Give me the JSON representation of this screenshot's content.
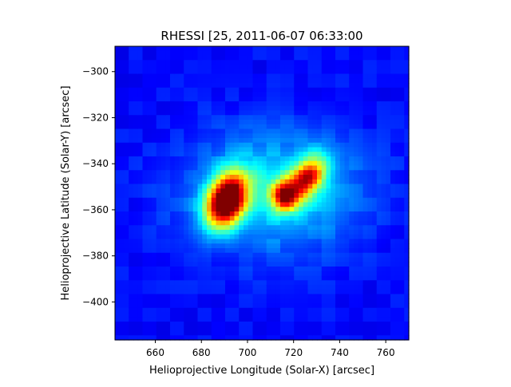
{
  "chart_data": {
    "type": "heatmap",
    "title": "RHESSI [25,  2011-06-07 06:33:00",
    "xlabel": "Helioprojective Longitude (Solar-X) [arcsec]",
    "ylabel": "Helioprojective Latitude (Solar-Y) [arcsec]",
    "xlim": [
      642.5,
      770
    ],
    "ylim": [
      -416.5,
      -289
    ],
    "xticks": [
      660,
      680,
      700,
      720,
      740,
      760
    ],
    "yticks": [
      -300,
      -320,
      -340,
      -360,
      -380,
      -400
    ],
    "xtick_labels": [
      "660",
      "680",
      "700",
      "720",
      "740",
      "760"
    ],
    "ytick_labels": [
      "−300",
      "−320",
      "−340",
      "−360",
      "−380",
      "−400"
    ],
    "colormap": "jet",
    "grid": false,
    "sources": [
      {
        "x": 691,
        "y": -356,
        "peak": 1.0,
        "sx": 5.5,
        "sy": 8.5,
        "angle_deg": 25
      },
      {
        "x": 716,
        "y": -354,
        "peak": 0.62,
        "sx": 4.0,
        "sy": 4.5,
        "angle_deg": 0
      },
      {
        "x": 726,
        "y": -346,
        "peak": 0.62,
        "sx": 4.5,
        "sy": 7.0,
        "angle_deg": 35
      }
    ],
    "halo": {
      "x": 712,
      "y": -352,
      "level": 0.24,
      "sx": 26,
      "sy": 18
    },
    "background_level": 0.13
  }
}
